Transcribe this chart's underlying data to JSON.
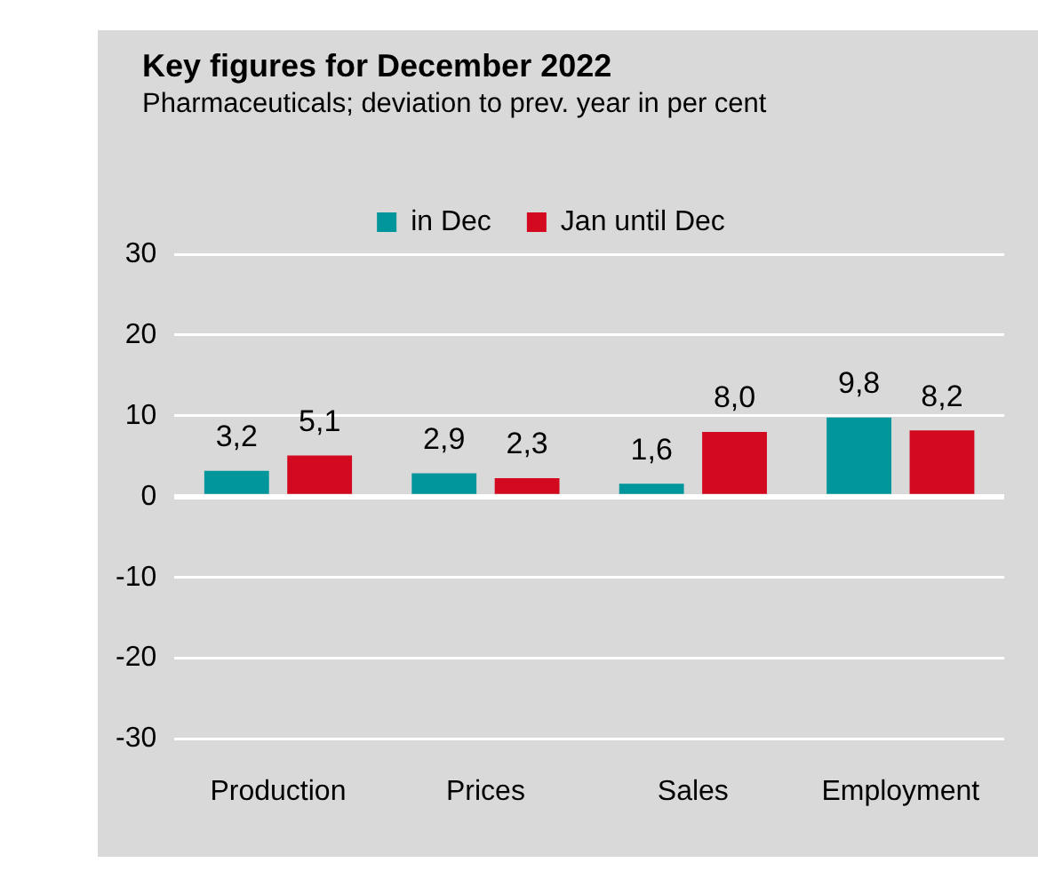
{
  "chart_data": {
    "type": "bar",
    "title": "Key figures for December 2022",
    "subtitle": "Pharmaceuticals; deviation to prev. year in per cent",
    "categories": [
      "Production",
      "Prices",
      "Sales",
      "Employment"
    ],
    "series": [
      {
        "name": "in Dec",
        "color": "#00969b",
        "values": [
          3.2,
          2.9,
          1.6,
          9.8
        ],
        "value_labels": [
          "3,2",
          "2,9",
          "1,6",
          "9,8"
        ]
      },
      {
        "name": "Jan until Dec",
        "color": "#d2091f",
        "values": [
          5.1,
          2.3,
          8.0,
          8.2
        ],
        "value_labels": [
          "5,1",
          "2,3",
          "8,0",
          "8,2"
        ]
      }
    ],
    "ylim": [
      -30,
      30
    ],
    "yticks": [
      -30,
      -20,
      -10,
      0,
      10,
      20,
      30
    ],
    "grid": "y",
    "legend": "top"
  }
}
